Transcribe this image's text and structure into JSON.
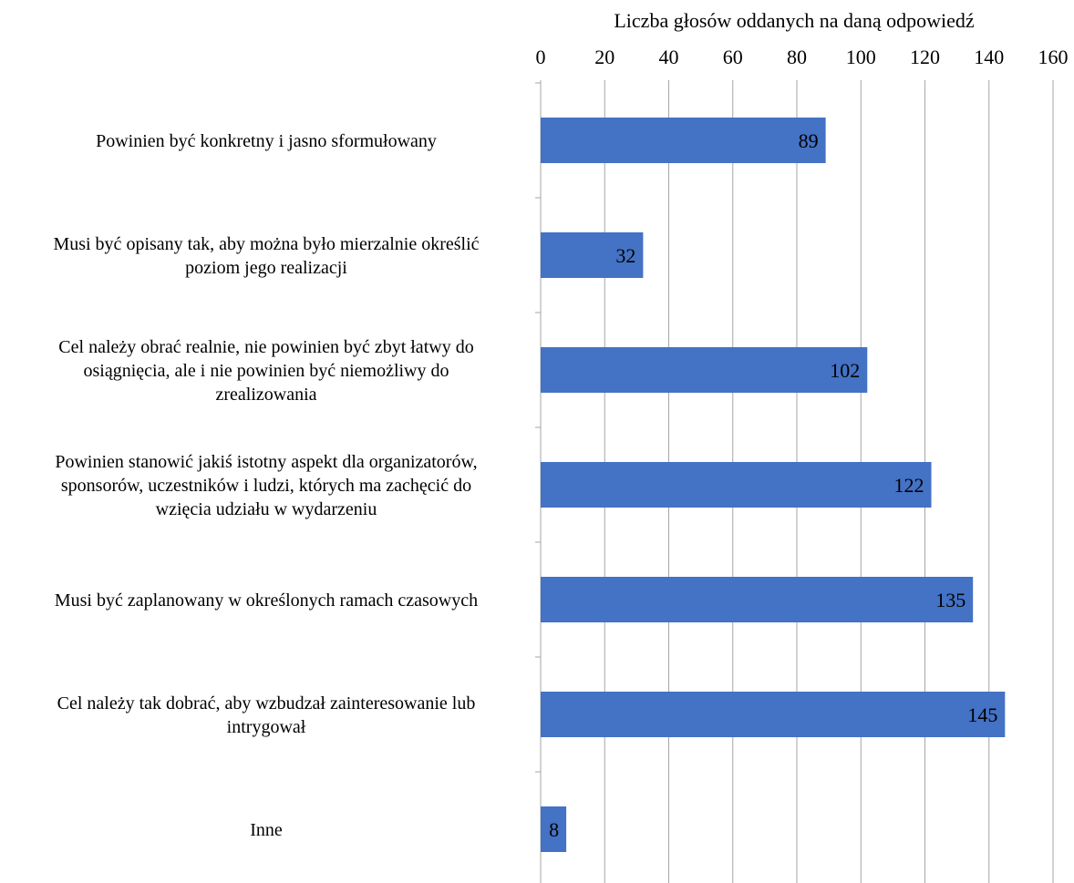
{
  "chart_data": {
    "type": "bar",
    "orientation": "horizontal",
    "xlabel": "Liczba głosów oddanych na daną odpowiedź",
    "xlabel_position": "top",
    "xlim": [
      0,
      160
    ],
    "x_ticks": [
      0,
      20,
      40,
      60,
      80,
      100,
      120,
      140,
      160
    ],
    "x_tick_labels": [
      "0",
      "20",
      "40",
      "60",
      "80",
      "100",
      "120",
      "140",
      "160"
    ],
    "grid": "vertical",
    "legend": "none",
    "categories": [
      "Powinien być konkretny i jasno sformułowany",
      "Musi być opisany tak, aby można było mierzalnie określić poziom jego realizacji",
      "Cel należy obrać realnie, nie powinien być zbyt łatwy do osiągnięcia, ale i nie powinien być niemożliwy do zrealizowania",
      "Powinien stanowić jakiś istotny aspekt dla organizatorów, sponsorów, uczestników i ludzi, których ma zachęcić do wzięcia udziału w wydarzeniu",
      "Musi być zaplanowany w określonych ramach czasowych",
      "Cel należy tak dobrać, aby wzbudzał zainteresowanie lub intrygował",
      "Inne"
    ],
    "category_label_lines": [
      [
        "Powinien być konkretny i jasno sformułowany"
      ],
      [
        "Musi być opisany tak, aby można było mierzalnie określić",
        "poziom jego realizacji"
      ],
      [
        "Cel należy obrać realnie, nie powinien być zbyt łatwy do",
        "osiągnięcia, ale i nie powinien być niemożliwy do",
        "zrealizowania"
      ],
      [
        "Powinien stanowić jakiś istotny aspekt dla organizatorów,",
        "sponsorów, uczestników i ludzi, których ma zachęcić do",
        "wzięcia udziału w wydarzeniu"
      ],
      [
        "Musi być zaplanowany w określonych ramach czasowych"
      ],
      [
        "Cel należy tak dobrać, aby wzbudzał zainteresowanie lub",
        "intrygował"
      ],
      [
        "Inne"
      ]
    ],
    "values": [
      89,
      32,
      102,
      122,
      135,
      145,
      8
    ],
    "data_labels": [
      "89",
      "32",
      "102",
      "122",
      "135",
      "145",
      "8"
    ],
    "bar_color": "#4472C4",
    "grid_color": "#A6A6A6"
  }
}
